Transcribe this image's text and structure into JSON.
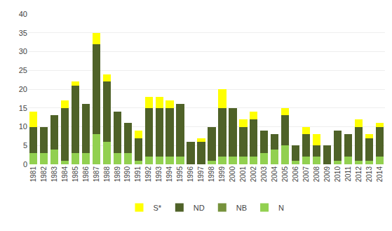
{
  "chart_data": {
    "type": "bar",
    "stacked": true,
    "categories": [
      "1981",
      "1982",
      "1983",
      "1984",
      "1985",
      "1986",
      "1987",
      "1988",
      "1989",
      "1990",
      "1991",
      "1992",
      "1993",
      "1994",
      "1995",
      "1996",
      "1997",
      "1998",
      "1999",
      "2000",
      "2001",
      "2002",
      "2003",
      "2004",
      "2005",
      "2006",
      "2007",
      "2008",
      "2009",
      "2010",
      "2011",
      "2012",
      "2013",
      "2014"
    ],
    "series": [
      {
        "name": "N",
        "color": "#92d050",
        "values": [
          3,
          3,
          4,
          1,
          3,
          3,
          8,
          6,
          3,
          3,
          1,
          2,
          2,
          2,
          2,
          0,
          0,
          1,
          2,
          2,
          2,
          2,
          3,
          4,
          5,
          1,
          2,
          2,
          0,
          1,
          2,
          1,
          1,
          2
        ]
      },
      {
        "name": "NB",
        "color": "#76923c",
        "values": [
          0,
          0,
          0,
          0,
          0,
          0,
          0,
          0,
          0,
          0,
          0,
          0,
          0,
          0,
          0,
          0,
          0,
          0,
          0,
          0,
          0,
          0,
          0,
          0,
          0,
          0,
          0,
          0,
          0,
          0,
          0,
          0,
          0,
          0
        ]
      },
      {
        "name": "ND",
        "color": "#4f6228",
        "values": [
          7,
          7,
          9,
          14,
          18,
          13,
          24,
          16,
          11,
          8,
          6,
          13,
          13,
          13,
          14,
          6,
          6,
          9,
          13,
          13,
          8,
          10,
          6,
          4,
          8,
          4,
          6,
          3,
          5,
          8,
          6,
          9,
          6,
          8
        ]
      },
      {
        "name": "S*",
        "color": "#ffff00",
        "values": [
          4,
          0,
          0,
          2,
          1,
          0,
          3,
          2,
          0,
          0,
          2,
          3,
          3,
          2,
          0,
          0,
          1,
          0,
          5,
          0,
          2,
          2,
          0,
          0,
          2,
          0,
          2,
          3,
          0,
          0,
          0,
          2,
          1,
          1
        ]
      }
    ],
    "ylim": [
      0,
      40
    ],
    "yticks": [
      0,
      5,
      10,
      15,
      20,
      25,
      30,
      35,
      40
    ],
    "grid": true,
    "legend": "bottom"
  }
}
